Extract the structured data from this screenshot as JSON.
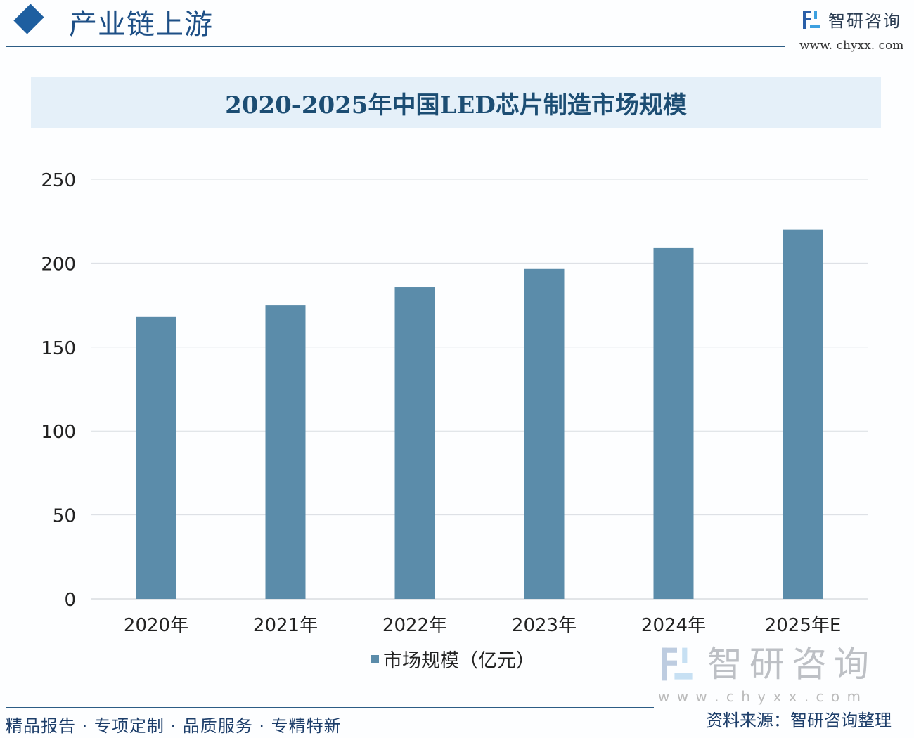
{
  "header": {
    "section_title": "产业链上游",
    "brand_name": "智研咨询",
    "brand_url": "www. chyxx. com"
  },
  "footer": {
    "source": "资料来源：智研咨询整理",
    "slogan": "精品报告 · 专项定制 · 品质服务 · 专精特新",
    "watermark_name": "智研咨询",
    "watermark_url": "w w w . c h y x x . c o m"
  },
  "colors": {
    "bar": "#5b8caa",
    "grid": "#d9dde2",
    "title": "#1c4d73"
  },
  "chart_data": {
    "type": "bar",
    "title": "2020-2025年中国LED芯片制造市场规模",
    "categories": [
      "2020年",
      "2021年",
      "2022年",
      "2023年",
      "2024年",
      "2025年E"
    ],
    "series": [
      {
        "name": "市场规模（亿元）",
        "values": [
          168,
          175,
          185.5,
          196.5,
          209,
          220
        ]
      }
    ],
    "yticks": [
      "0",
      "50",
      "100",
      "150",
      "200",
      "250"
    ],
    "ylim": [
      0,
      250
    ],
    "grid": true,
    "legend": "bottom-center"
  }
}
